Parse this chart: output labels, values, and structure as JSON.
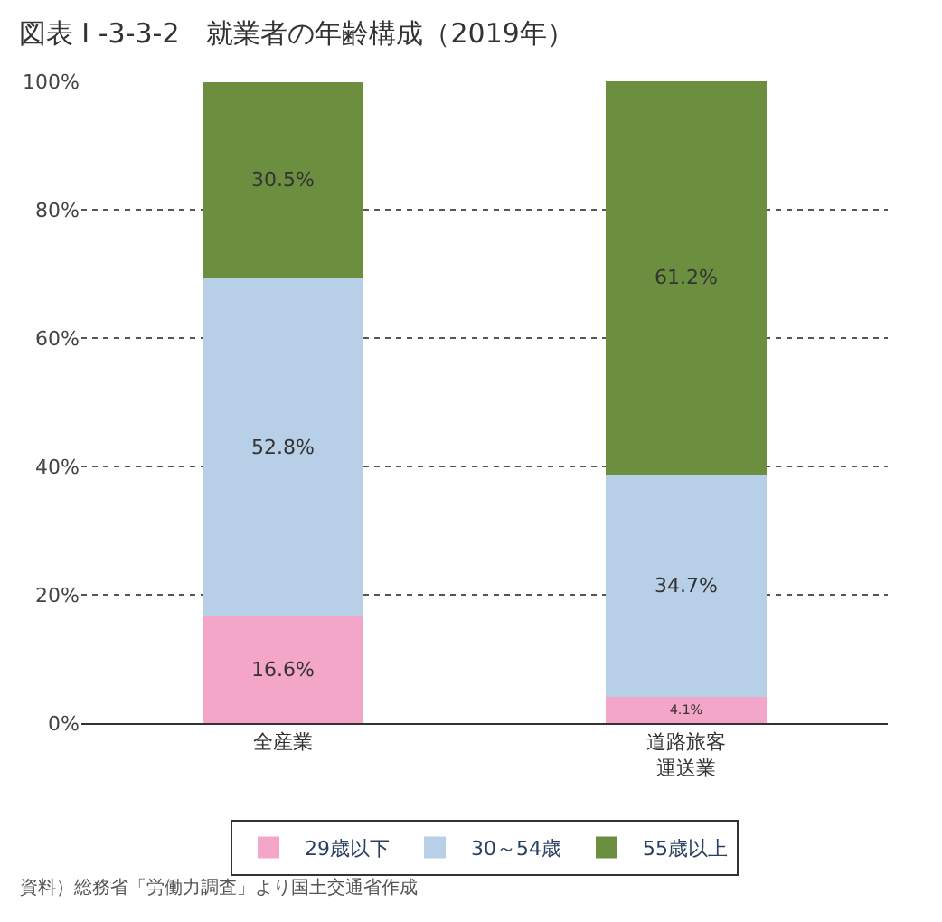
{
  "chart_data": {
    "type": "bar",
    "stacked": true,
    "title": "図表 I -3-3-2　就業者の年齢構成（2019年）",
    "categories": [
      "全産業",
      "道路旅客運送業"
    ],
    "series": [
      {
        "name": "29歳以下",
        "color": "#f4a6c8",
        "values": [
          16.6,
          4.1
        ],
        "value_labels": [
          "16.6%",
          "4.1%"
        ]
      },
      {
        "name": "30～54歳",
        "color": "#b8cfe8",
        "values": [
          52.8,
          34.7
        ],
        "value_labels": [
          "52.8%",
          "34.7%"
        ]
      },
      {
        "name": "55歳以上",
        "color": "#6b8f3e",
        "values": [
          30.5,
          61.2
        ],
        "value_labels": [
          "30.5%",
          "61.2%"
        ]
      }
    ],
    "ylim": [
      0,
      100
    ],
    "yticks": [
      {
        "value": 0,
        "label": "0%"
      },
      {
        "value": 20,
        "label": "20%"
      },
      {
        "value": 40,
        "label": "40%"
      },
      {
        "value": 60,
        "label": "60%"
      },
      {
        "value": 80,
        "label": "80%"
      },
      {
        "value": 100,
        "label": "100%"
      }
    ],
    "grid": "y",
    "legend": "bottom",
    "annotations": [
      "資料）総務省「労働力調査」より国土交通省作成"
    ]
  }
}
